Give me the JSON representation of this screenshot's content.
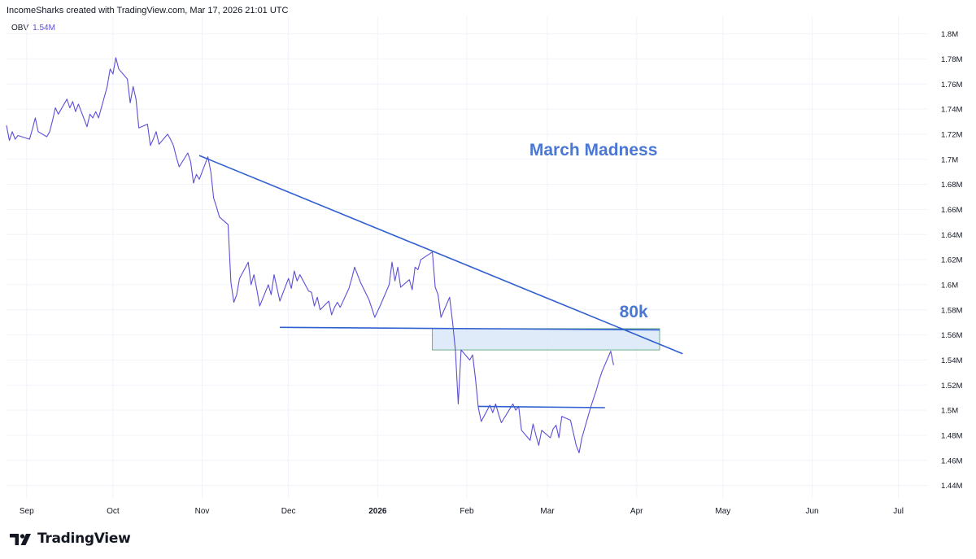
{
  "header": {
    "attribution": "IncomeSharks created with TradingView.com, Mar 17, 2026 21:01 UTC"
  },
  "legend": {
    "indicator": "OBV",
    "value": "1.54M"
  },
  "footer": {
    "brand": "TradingView",
    "logo_icon": "tradingview-logo-icon"
  },
  "colors": {
    "series": "#5b4fd6",
    "trendline": "#2f5fd0",
    "annotation": "#4a77d4",
    "zone_fill": "#dbe8f8",
    "zone_stroke": "#6fae8a",
    "grid": "#f0f3fa",
    "axis_text": "#131722"
  },
  "chart_data": {
    "type": "line",
    "title": "",
    "xlabel": "",
    "ylabel": "",
    "series": [
      {
        "values": [
          [
            "2025-08-25",
            1.727
          ],
          [
            "2025-08-26",
            1.715
          ],
          [
            "2025-08-27",
            1.722
          ],
          [
            "2025-08-28",
            1.716
          ],
          [
            "2025-08-29",
            1.719
          ],
          [
            "2025-09-02",
            1.716
          ],
          [
            "2025-09-03",
            1.724
          ],
          [
            "2025-09-04",
            1.733
          ],
          [
            "2025-09-05",
            1.722
          ],
          [
            "2025-09-08",
            1.718
          ],
          [
            "2025-09-09",
            1.722
          ],
          [
            "2025-09-10",
            1.731
          ],
          [
            "2025-09-11",
            1.741
          ],
          [
            "2025-09-12",
            1.736
          ],
          [
            "2025-09-15",
            1.748
          ],
          [
            "2025-09-16",
            1.741
          ],
          [
            "2025-09-17",
            1.746
          ],
          [
            "2025-09-18",
            1.738
          ],
          [
            "2025-09-19",
            1.744
          ],
          [
            "2025-09-22",
            1.726
          ],
          [
            "2025-09-23",
            1.736
          ],
          [
            "2025-09-24",
            1.733
          ],
          [
            "2025-09-25",
            1.738
          ],
          [
            "2025-09-26",
            1.733
          ],
          [
            "2025-09-29",
            1.758
          ],
          [
            "2025-09-30",
            1.772
          ],
          [
            "2025-10-01",
            1.768
          ],
          [
            "2025-10-02",
            1.781
          ],
          [
            "2025-10-03",
            1.772
          ],
          [
            "2025-10-06",
            1.764
          ],
          [
            "2025-10-07",
            1.745
          ],
          [
            "2025-10-08",
            1.758
          ],
          [
            "2025-10-09",
            1.748
          ],
          [
            "2025-10-10",
            1.725
          ],
          [
            "2025-10-13",
            1.728
          ],
          [
            "2025-10-14",
            1.711
          ],
          [
            "2025-10-15",
            1.716
          ],
          [
            "2025-10-16",
            1.722
          ],
          [
            "2025-10-17",
            1.712
          ],
          [
            "2025-10-20",
            1.72
          ],
          [
            "2025-10-21",
            1.716
          ],
          [
            "2025-10-22",
            1.711
          ],
          [
            "2025-10-23",
            1.702
          ],
          [
            "2025-10-24",
            1.694
          ],
          [
            "2025-10-27",
            1.705
          ],
          [
            "2025-10-28",
            1.698
          ],
          [
            "2025-10-29",
            1.681
          ],
          [
            "2025-10-30",
            1.688
          ],
          [
            "2025-10-31",
            1.684
          ],
          [
            "2025-11-03",
            1.702
          ],
          [
            "2025-11-04",
            1.69
          ],
          [
            "2025-11-05",
            1.669
          ],
          [
            "2025-11-06",
            1.662
          ],
          [
            "2025-11-07",
            1.654
          ],
          [
            "2025-11-10",
            1.648
          ],
          [
            "2025-11-11",
            1.602
          ],
          [
            "2025-11-12",
            1.586
          ],
          [
            "2025-11-13",
            1.592
          ],
          [
            "2025-11-14",
            1.605
          ],
          [
            "2025-11-17",
            1.618
          ],
          [
            "2025-11-18",
            1.6
          ],
          [
            "2025-11-19",
            1.608
          ],
          [
            "2025-11-20",
            1.596
          ],
          [
            "2025-11-21",
            1.583
          ],
          [
            "2025-11-24",
            1.6
          ],
          [
            "2025-11-25",
            1.592
          ],
          [
            "2025-11-26",
            1.608
          ],
          [
            "2025-11-28",
            1.587
          ],
          [
            "2025-12-01",
            1.605
          ],
          [
            "2025-12-02",
            1.597
          ],
          [
            "2025-12-03",
            1.611
          ],
          [
            "2025-12-04",
            1.603
          ],
          [
            "2025-12-05",
            1.608
          ],
          [
            "2025-12-08",
            1.595
          ],
          [
            "2025-12-09",
            1.594
          ],
          [
            "2025-12-10",
            1.583
          ],
          [
            "2025-12-11",
            1.59
          ],
          [
            "2025-12-12",
            1.58
          ],
          [
            "2025-12-15",
            1.587
          ],
          [
            "2025-12-16",
            1.576
          ],
          [
            "2025-12-17",
            1.582
          ],
          [
            "2025-12-18",
            1.586
          ],
          [
            "2025-12-19",
            1.582
          ],
          [
            "2025-12-22",
            1.597
          ],
          [
            "2025-12-23",
            1.605
          ],
          [
            "2025-12-24",
            1.614
          ],
          [
            "2025-12-26",
            1.602
          ],
          [
            "2025-12-29",
            1.588
          ],
          [
            "2025-12-30",
            1.581
          ],
          [
            "2025-12-31",
            1.574
          ],
          [
            "2026-01-02",
            1.584
          ],
          [
            "2026-01-05",
            1.6
          ],
          [
            "2026-01-06",
            1.618
          ],
          [
            "2026-01-07",
            1.603
          ],
          [
            "2026-01-08",
            1.614
          ],
          [
            "2026-01-09",
            1.598
          ],
          [
            "2026-01-12",
            1.604
          ],
          [
            "2026-01-13",
            1.596
          ],
          [
            "2026-01-14",
            1.614
          ],
          [
            "2026-01-15",
            1.612
          ],
          [
            "2026-01-16",
            1.62
          ],
          [
            "2026-01-20",
            1.626
          ],
          [
            "2026-01-21",
            1.598
          ],
          [
            "2026-01-22",
            1.592
          ],
          [
            "2026-01-23",
            1.574
          ],
          [
            "2026-01-26",
            1.59
          ],
          [
            "2026-01-27",
            1.571
          ],
          [
            "2026-01-28",
            1.548
          ],
          [
            "2026-01-29",
            1.505
          ],
          [
            "2026-01-30",
            1.548
          ],
          [
            "2026-02-02",
            1.54
          ],
          [
            "2026-02-03",
            1.544
          ],
          [
            "2026-02-04",
            1.525
          ],
          [
            "2026-02-05",
            1.502
          ],
          [
            "2026-02-06",
            1.491
          ],
          [
            "2026-02-09",
            1.504
          ],
          [
            "2026-02-10",
            1.498
          ],
          [
            "2026-02-11",
            1.505
          ],
          [
            "2026-02-12",
            1.497
          ],
          [
            "2026-02-13",
            1.49
          ],
          [
            "2026-02-17",
            1.505
          ],
          [
            "2026-02-18",
            1.5
          ],
          [
            "2026-02-19",
            1.503
          ],
          [
            "2026-02-20",
            1.484
          ],
          [
            "2026-02-23",
            1.476
          ],
          [
            "2026-02-24",
            1.489
          ],
          [
            "2026-02-25",
            1.48
          ],
          [
            "2026-02-26",
            1.472
          ],
          [
            "2026-02-27",
            1.484
          ],
          [
            "2026-03-02",
            1.478
          ],
          [
            "2026-03-03",
            1.485
          ],
          [
            "2026-03-04",
            1.488
          ],
          [
            "2026-03-05",
            1.478
          ],
          [
            "2026-03-06",
            1.495
          ],
          [
            "2026-03-09",
            1.492
          ],
          [
            "2026-03-10",
            1.482
          ],
          [
            "2026-03-11",
            1.472
          ],
          [
            "2026-03-12",
            1.466
          ],
          [
            "2026-03-13",
            1.478
          ],
          [
            "2026-03-16",
            1.502
          ],
          [
            "2026-03-17",
            1.509
          ],
          [
            "2026-03-18",
            1.516
          ],
          [
            "2026-03-19",
            1.524
          ],
          [
            "2026-03-20",
            1.531
          ],
          [
            "2026-03-23",
            1.547
          ],
          [
            "2026-03-24",
            1.536
          ]
        ]
      }
    ],
    "x_ticks": [
      {
        "date": "2025-09-01",
        "label": "Sep"
      },
      {
        "date": "2025-10-01",
        "label": "Oct"
      },
      {
        "date": "2025-11-01",
        "label": "Nov"
      },
      {
        "date": "2025-12-01",
        "label": "Dec"
      },
      {
        "date": "2026-01-01",
        "label": "2026"
      },
      {
        "date": "2026-02-01",
        "label": "Feb"
      },
      {
        "date": "2026-03-01",
        "label": "Mar"
      },
      {
        "date": "2026-04-01",
        "label": "Apr"
      },
      {
        "date": "2026-05-01",
        "label": "May"
      },
      {
        "date": "2026-06-01",
        "label": "Jun"
      },
      {
        "date": "2026-07-01",
        "label": "Jul"
      }
    ],
    "y_ticks": [
      "1.44M",
      "1.46M",
      "1.48M",
      "1.5M",
      "1.52M",
      "1.54M",
      "1.56M",
      "1.58M",
      "1.6M",
      "1.62M",
      "1.64M",
      "1.66M",
      "1.68M",
      "1.7M",
      "1.72M",
      "1.74M",
      "1.76M",
      "1.78M",
      "1.8M"
    ],
    "y_tick_values": [
      1.44,
      1.46,
      1.48,
      1.5,
      1.52,
      1.54,
      1.56,
      1.58,
      1.6,
      1.62,
      1.64,
      1.66,
      1.68,
      1.7,
      1.72,
      1.74,
      1.76,
      1.78,
      1.8
    ],
    "xlim": [
      "2025-08-25",
      "2026-07-11"
    ],
    "ylim": [
      1.43,
      1.814
    ],
    "grid": true,
    "drawings": {
      "lines": [
        {
          "name": "descending-trendline",
          "from": [
            "2025-10-31",
            1.703
          ],
          "to": [
            "2026-04-17",
            1.545
          ]
        },
        {
          "name": "support-line",
          "from": [
            "2025-11-28",
            1.566
          ],
          "to": [
            "2026-04-09",
            1.564
          ]
        },
        {
          "name": "neckline",
          "from": [
            "2026-02-05",
            1.503
          ],
          "to": [
            "2026-03-21",
            1.502
          ]
        }
      ],
      "zone": {
        "name": "80k-gap-zone",
        "from": [
          "2026-01-20",
          1.565
        ],
        "to": [
          "2026-04-09",
          1.548
        ]
      }
    },
    "annotations": [
      {
        "name": "march-madness",
        "text": "March Madness",
        "at": [
          "2026-03-17",
          1.703
        ]
      },
      {
        "name": "80k",
        "text": "80k",
        "at": [
          "2026-03-31",
          1.574
        ]
      }
    ]
  }
}
